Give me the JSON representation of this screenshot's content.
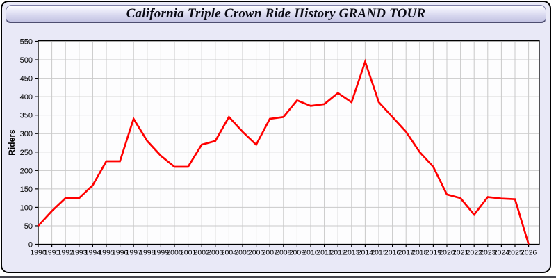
{
  "window": {
    "title": "California Triple Crown Ride History GRAND TOUR"
  },
  "chart_data": {
    "type": "line",
    "title": "California Triple Crown Ride History GRAND TOUR",
    "xlabel": "",
    "ylabel": "Riders",
    "categories": [
      1990,
      1991,
      1992,
      1993,
      1994,
      1995,
      1996,
      1997,
      1998,
      1999,
      2000,
      2001,
      2002,
      2003,
      2004,
      2005,
      2006,
      2007,
      2008,
      2009,
      2010,
      2011,
      2012,
      2013,
      2014,
      2015,
      2016,
      2017,
      2018,
      2019,
      2020,
      2021,
      2022,
      2023,
      2024,
      2025,
      2026
    ],
    "series": [
      {
        "name": "Riders",
        "color": "#ff0000",
        "values": [
          50,
          90,
          125,
          125,
          160,
          225,
          225,
          340,
          280,
          240,
          210,
          210,
          270,
          280,
          345,
          305,
          270,
          340,
          345,
          390,
          375,
          380,
          410,
          385,
          495,
          385,
          345,
          305,
          250,
          210,
          135,
          125,
          80,
          128,
          124,
          122,
          0
        ]
      }
    ],
    "ylim": [
      0,
      550
    ],
    "ytick_step": 50,
    "y_ticks": [
      0,
      50,
      100,
      150,
      200,
      250,
      300,
      350,
      400,
      450,
      500,
      550
    ],
    "grid": true,
    "legend_position": "none",
    "colors": {
      "plot_bg": "#fdfdfe",
      "grid": "#c9c9c9",
      "frame": "#000000",
      "tick_text": "#000000",
      "panel_bg": "#e9e9f7",
      "titlebar_border": "#7d7da6"
    }
  }
}
